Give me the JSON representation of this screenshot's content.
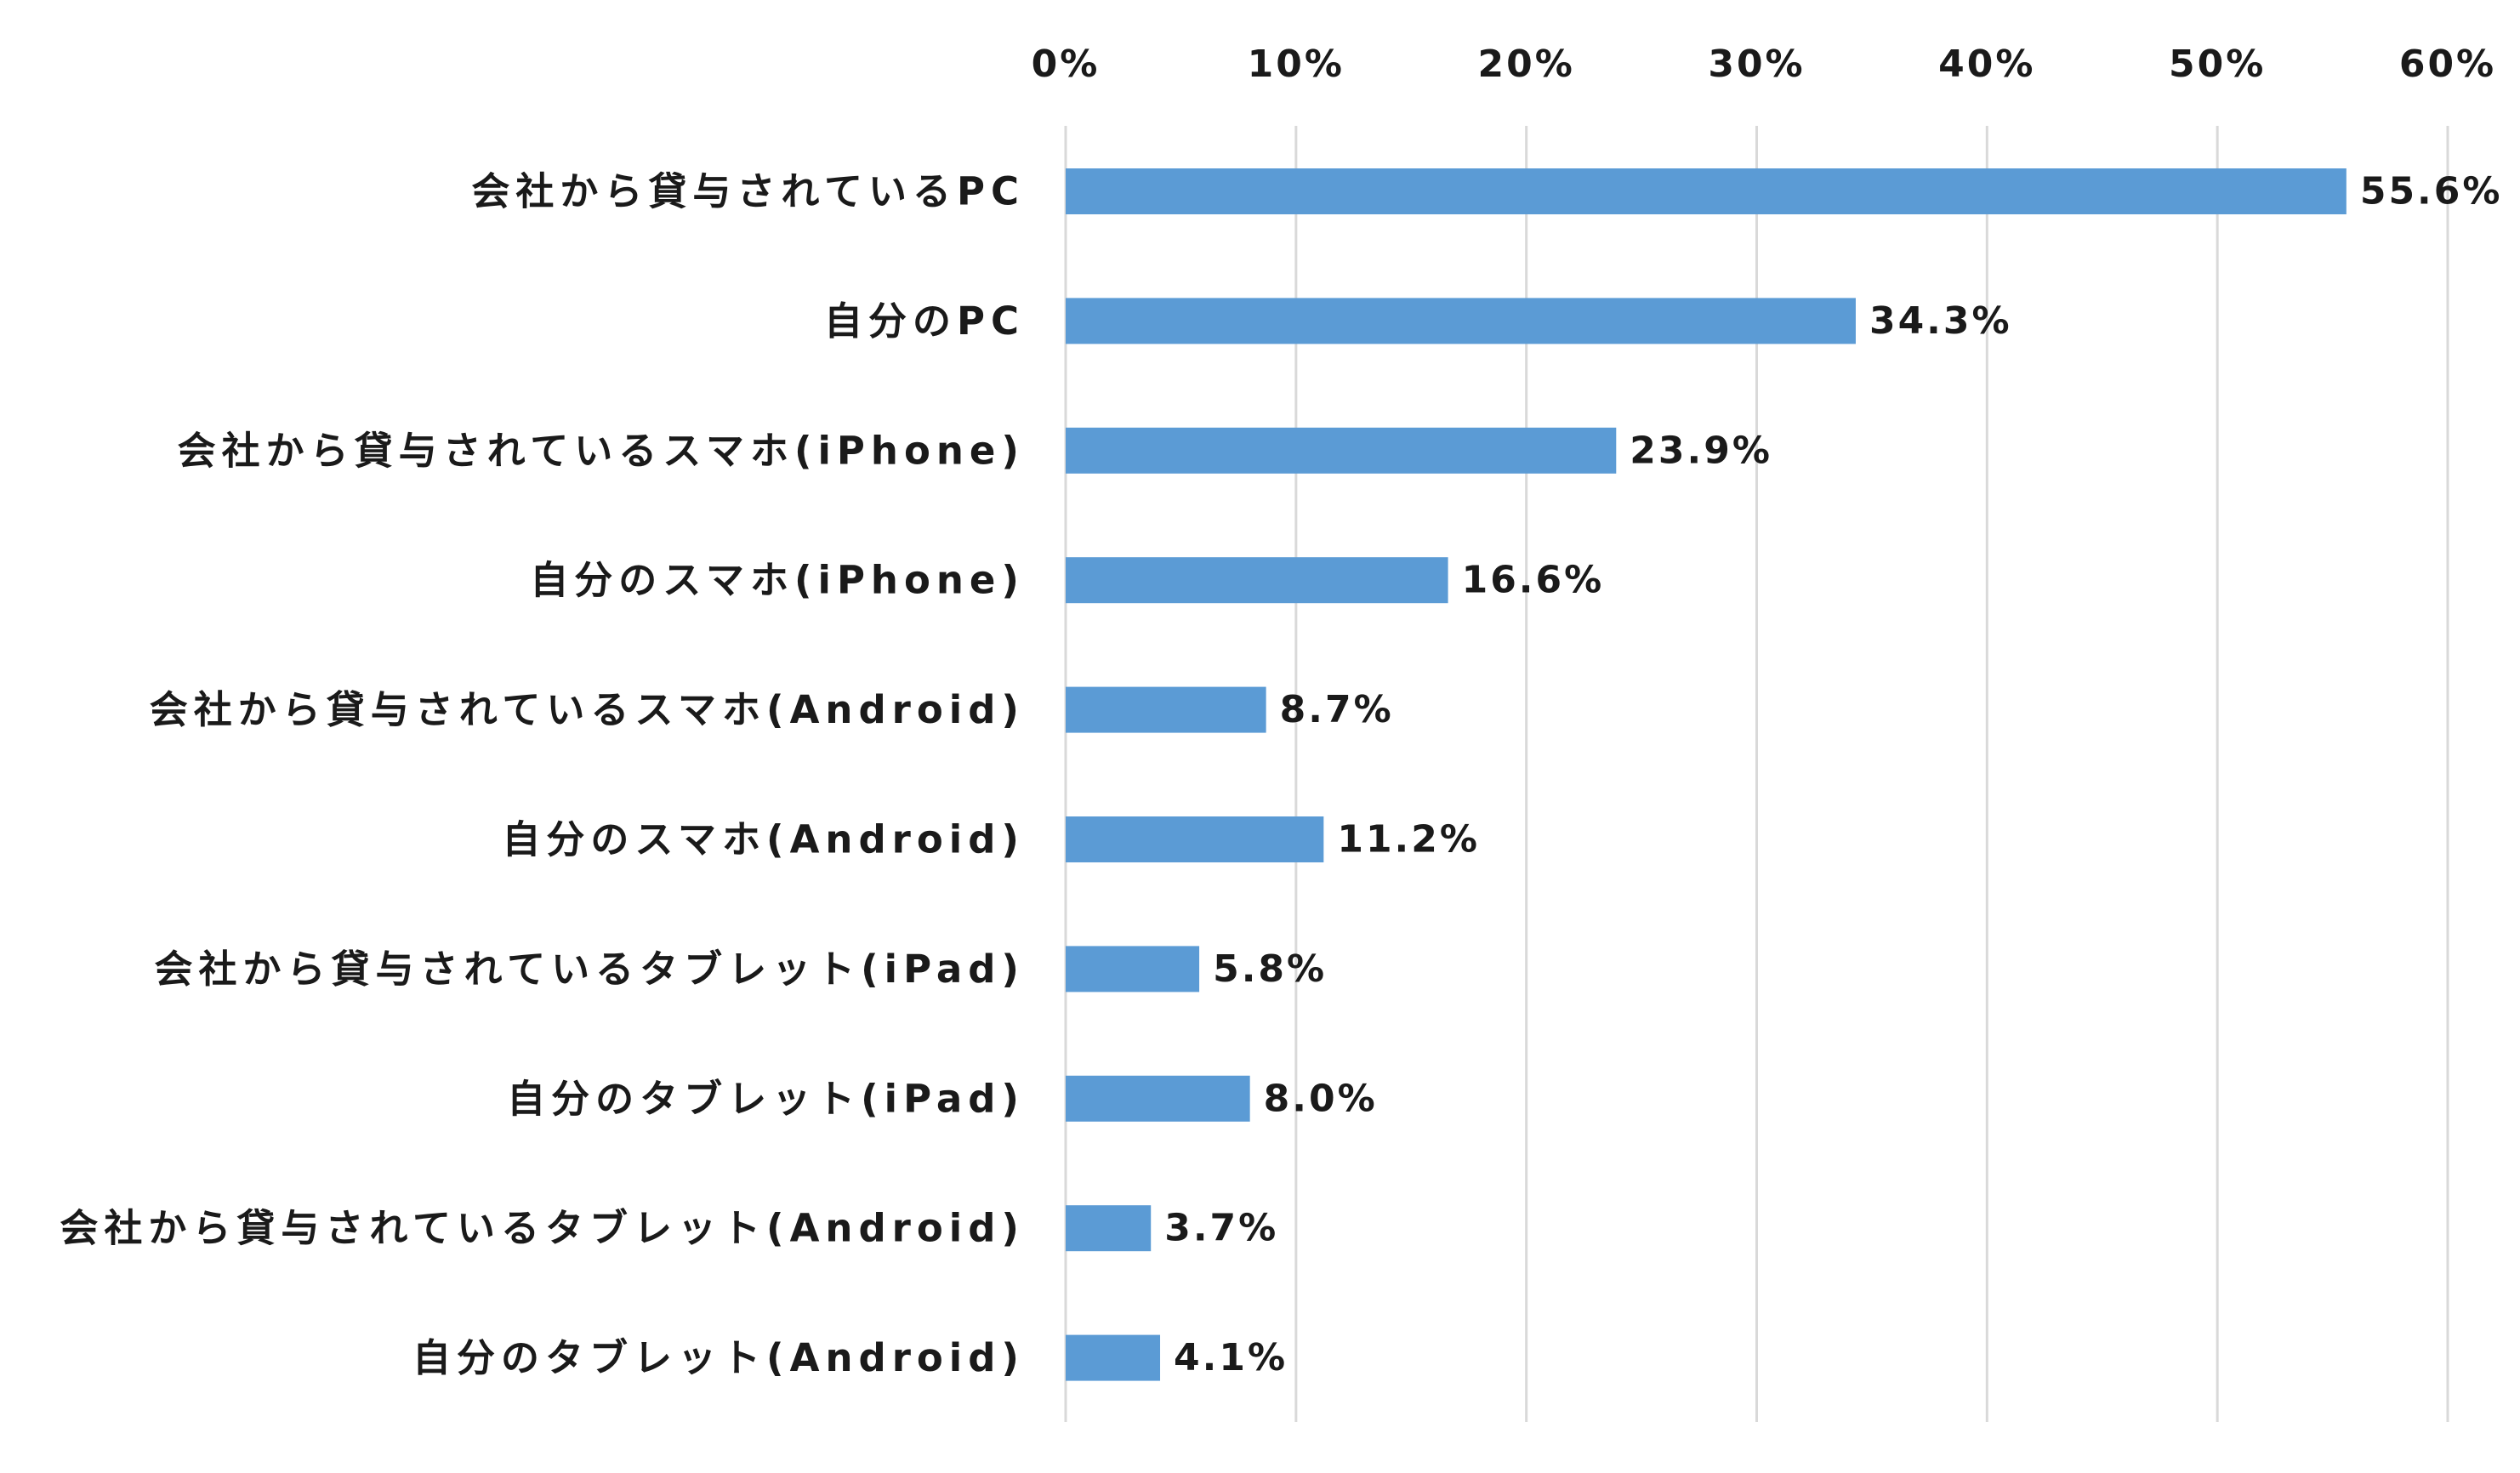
{
  "chart_data": {
    "type": "bar",
    "orientation": "horizontal",
    "categories": [
      "会社から貸与されているPC",
      "自分のPC",
      "会社から貸与されているスマホ(iPhone)",
      "自分のスマホ(iPhone)",
      "会社から貸与されているスマホ(Android)",
      "自分のスマホ(Android)",
      "会社から貸与されているタブレット(iPad)",
      "自分のタブレット(iPad)",
      "会社から貸与されているタブレット(Android)",
      "自分のタブレット(Android)"
    ],
    "values": [
      55.6,
      34.3,
      23.9,
      16.6,
      8.7,
      11.2,
      5.8,
      8.0,
      3.7,
      4.1
    ],
    "value_labels": [
      "55.6%",
      "34.3%",
      "23.9%",
      "16.6%",
      "8.7%",
      "11.2%",
      "5.8%",
      "8.0%",
      "3.7%",
      "4.1%"
    ],
    "x_ticks": [
      0,
      10,
      20,
      30,
      40,
      50,
      60
    ],
    "x_tick_labels": [
      "0%",
      "10%",
      "20%",
      "30%",
      "40%",
      "50%",
      "60%"
    ],
    "xlim": [
      0,
      60
    ],
    "x_axis_position": "top",
    "grid": true,
    "legend": "none",
    "title": "",
    "xlabel": "",
    "ylabel": "",
    "bar_color": "#5b9bd5",
    "grid_color": "#d9d9d9",
    "text_color": "#1a1a1a"
  }
}
